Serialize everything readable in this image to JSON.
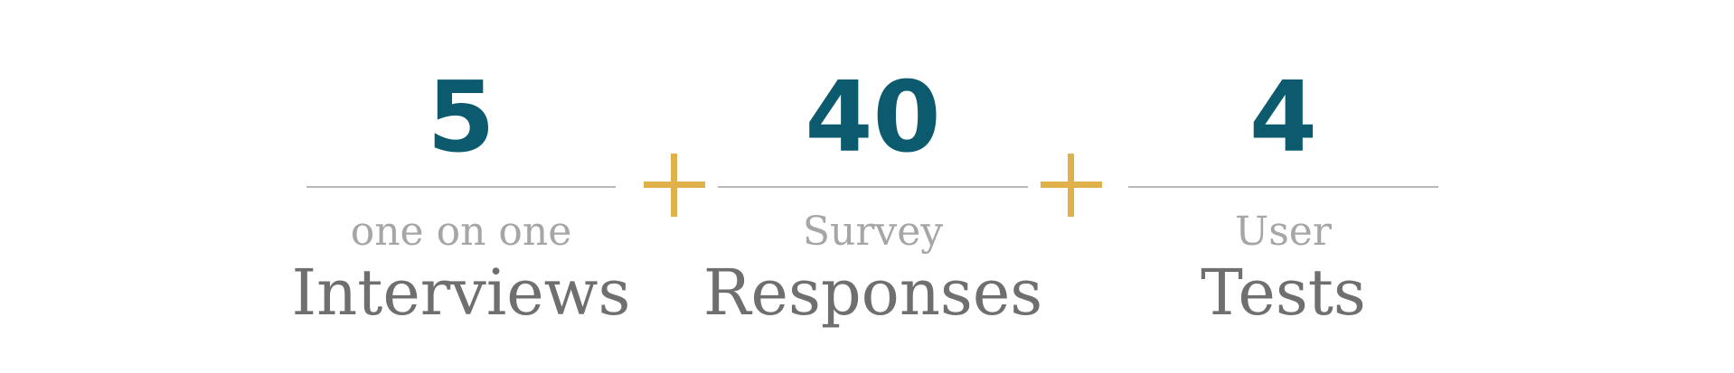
{
  "stats": [
    {
      "number": "5",
      "qualifier": "one on one",
      "label": "Interviews"
    },
    {
      "number": "40",
      "qualifier": "Survey",
      "label": "Responses"
    },
    {
      "number": "4",
      "qualifier": "User",
      "label": "Tests"
    }
  ],
  "colors": {
    "number": "#0b5a6e",
    "plus": "#e0b04a",
    "divider": "#b8b8b8",
    "qualifier": "#a6a6a6",
    "label": "#6f6f6f"
  },
  "icons": {
    "separator": "plus-icon"
  }
}
